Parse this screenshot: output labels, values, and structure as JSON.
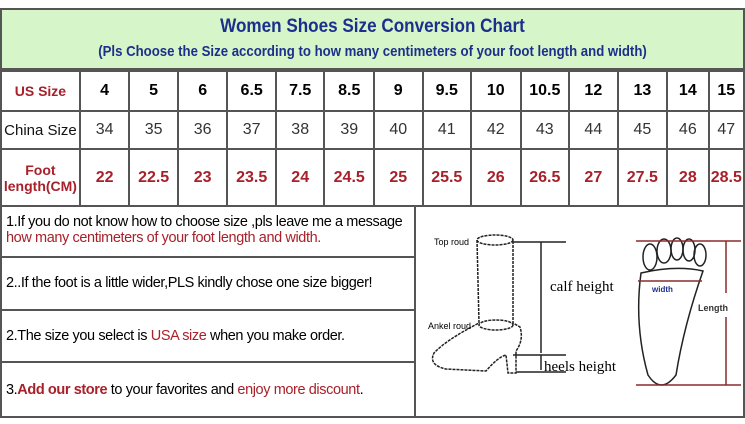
{
  "title": "Women Shoes Size Conversion Chart",
  "subtitle": "(Pls Choose the Size according to how many centimeters of your foot length and width)",
  "rows": {
    "us": {
      "label": "US Size",
      "values": [
        "4",
        "5",
        "6",
        "6.5",
        "7.5",
        "8.5",
        "9",
        "9.5",
        "10",
        "10.5",
        "12",
        "13",
        "14",
        "15"
      ]
    },
    "china": {
      "label": "China Size",
      "values": [
        "34",
        "35",
        "36",
        "37",
        "38",
        "39",
        "40",
        "41",
        "42",
        "43",
        "44",
        "45",
        "46",
        "47"
      ]
    },
    "foot": {
      "label1": "Foot",
      "label2": "length(CM)",
      "values": [
        "22",
        "22.5",
        "23",
        "23.5",
        "24",
        "24.5",
        "25",
        "25.5",
        "26",
        "26.5",
        "27",
        "27.5",
        "28",
        "28.5"
      ]
    }
  },
  "notes": {
    "n1a": "1.If you do not know how to choose size ,pls leave me a message",
    "n1b": "how many centimeters of your foot length and width.",
    "n2": "2..If the foot is a little wider,PLS kindly chose one size bigger!",
    "n3a": "2.The size you select is ",
    "n3b": "USA size",
    "n3c": " when you make order.",
    "n4a": "3.",
    "n4b": "Add our store",
    "n4c": " to your favorites and ",
    "n4d": "enjoy more discount",
    "n4e": "."
  },
  "diagram": {
    "top": "Top roud",
    "ankle": "Ankel roud",
    "calf": "calf height",
    "heel": "heels height",
    "width": "width",
    "length": "Length"
  },
  "colors": {
    "title": "#1d2f8c",
    "accent": "#a8202a",
    "header_bg": "#d6f5c8"
  }
}
